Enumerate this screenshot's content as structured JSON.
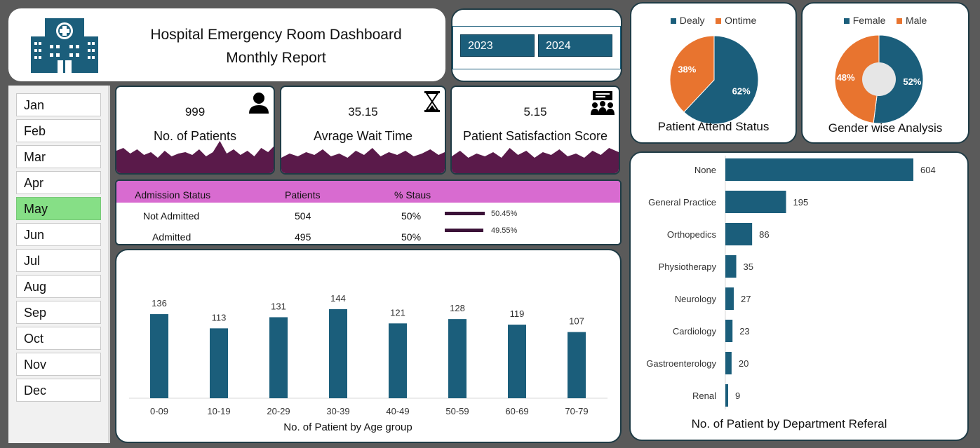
{
  "header": {
    "title": "Hospital Emergency Room Dashboard",
    "subtitle": "Monthly Report"
  },
  "years": [
    "2023",
    "2024"
  ],
  "months": {
    "items": [
      "Jan",
      "Feb",
      "Mar",
      "Apr",
      "May",
      "Jun",
      "Jul",
      "Aug",
      "Sep",
      "Oct",
      "Nov",
      "Dec"
    ],
    "selected": "May"
  },
  "kpis": [
    {
      "value": "999",
      "label": "No. of Patients",
      "icon": "patient-icon"
    },
    {
      "value": "35.15",
      "label": "Avrage Wait Time",
      "icon": "hourglass-icon"
    },
    {
      "value": "5.15",
      "label": "Patient Satisfaction Score",
      "icon": "meeting-icon"
    }
  ],
  "admission": {
    "headers": [
      "Admission Status",
      "Patients",
      "% Staus"
    ],
    "rows": [
      {
        "status": "Not Admitted",
        "patients": "504",
        "pct": "50%",
        "bar_label": "50.45%",
        "bar_value": 50.45
      },
      {
        "status": "Admitted",
        "patients": "495",
        "pct": "50%",
        "bar_label": "49.55%",
        "bar_value": 49.55
      }
    ]
  },
  "charts": {
    "attend_title": "Patient Attend Status",
    "gender_title": "Gender wise Analysis"
  },
  "chart_data": [
    {
      "type": "pie",
      "title": "Patient Attend Status",
      "categories": [
        "Dealy",
        "Ontime"
      ],
      "values": [
        62,
        38
      ],
      "labels": [
        "62%",
        "38%"
      ],
      "colors": [
        "#1b5e7b",
        "#e8742f"
      ],
      "legend": "top"
    },
    {
      "type": "pie",
      "title": "Gender wise Analysis",
      "categories": [
        "Female",
        "Male"
      ],
      "values": [
        52,
        48
      ],
      "labels": [
        "52%",
        "48%"
      ],
      "colors": [
        "#1b5e7b",
        "#e8742f"
      ],
      "legend": "top",
      "donut": true
    },
    {
      "type": "bar",
      "title": "No. of Patient by Age group",
      "categories": [
        "0-09",
        "10-19",
        "20-29",
        "30-39",
        "40-49",
        "50-59",
        "60-69",
        "70-79"
      ],
      "values": [
        136,
        113,
        131,
        144,
        121,
        128,
        119,
        107
      ],
      "color": "#1b5e7b",
      "ylim": [
        0,
        150
      ]
    },
    {
      "type": "bar",
      "orientation": "horizontal",
      "title": "No. of Patient by Department Referal",
      "categories": [
        "None",
        "General Practice",
        "Orthopedics",
        "Physiotherapy",
        "Neurology",
        "Cardiology",
        "Gastroenterology",
        "Renal"
      ],
      "values": [
        604,
        195,
        86,
        35,
        27,
        23,
        20,
        9
      ],
      "color": "#1b5e7b",
      "xlim": [
        0,
        610
      ]
    }
  ]
}
